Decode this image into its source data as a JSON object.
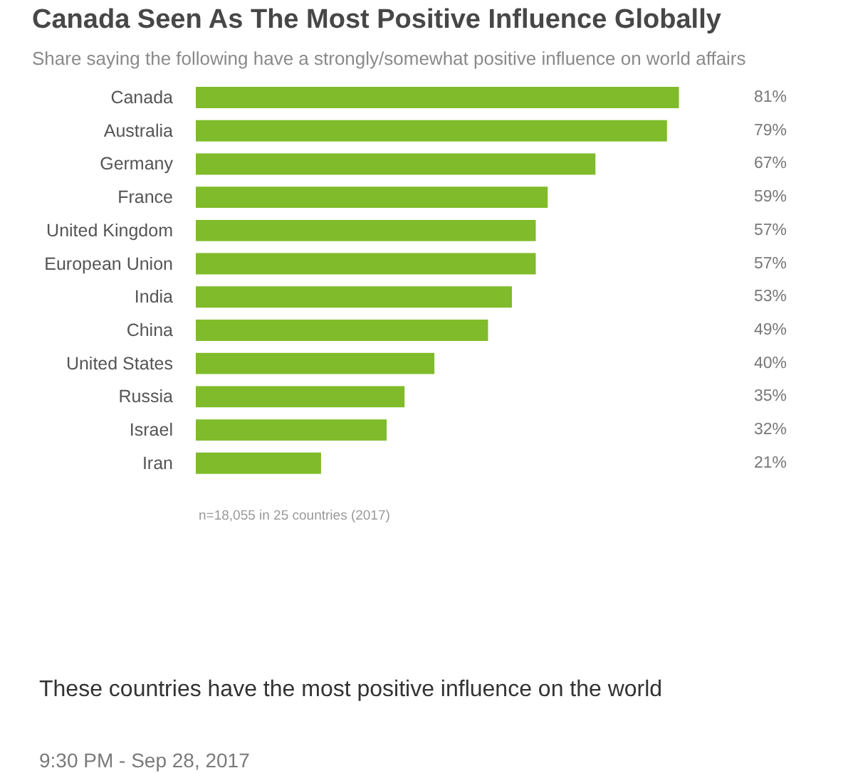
{
  "chart_data": {
    "type": "bar",
    "orientation": "horizontal",
    "title": "Canada Seen As The Most Positive Influence Globally",
    "subtitle": "Share saying the following have a strongly/somewhat positive influence on world affairs",
    "categories": [
      "Canada",
      "Australia",
      "Germany",
      "France",
      "United Kingdom",
      "European Union",
      "India",
      "China",
      "United States",
      "Russia",
      "Israel",
      "Iran"
    ],
    "values": [
      81,
      79,
      67,
      59,
      57,
      57,
      53,
      49,
      40,
      35,
      32,
      21
    ],
    "color": "#7fbb2a",
    "value_labels": [
      "81%",
      "79%",
      "67%",
      "59%",
      "57%",
      "57%",
      "53%",
      "49%",
      "40%",
      "35%",
      "32%",
      "21%"
    ],
    "tick_labels": "y",
    "annotations": [
      "n=18,055 in 25 countries (2017)",
      "These countries have the most positive influence on the world",
      "9:30 PM - Sep 28, 2017"
    ]
  }
}
